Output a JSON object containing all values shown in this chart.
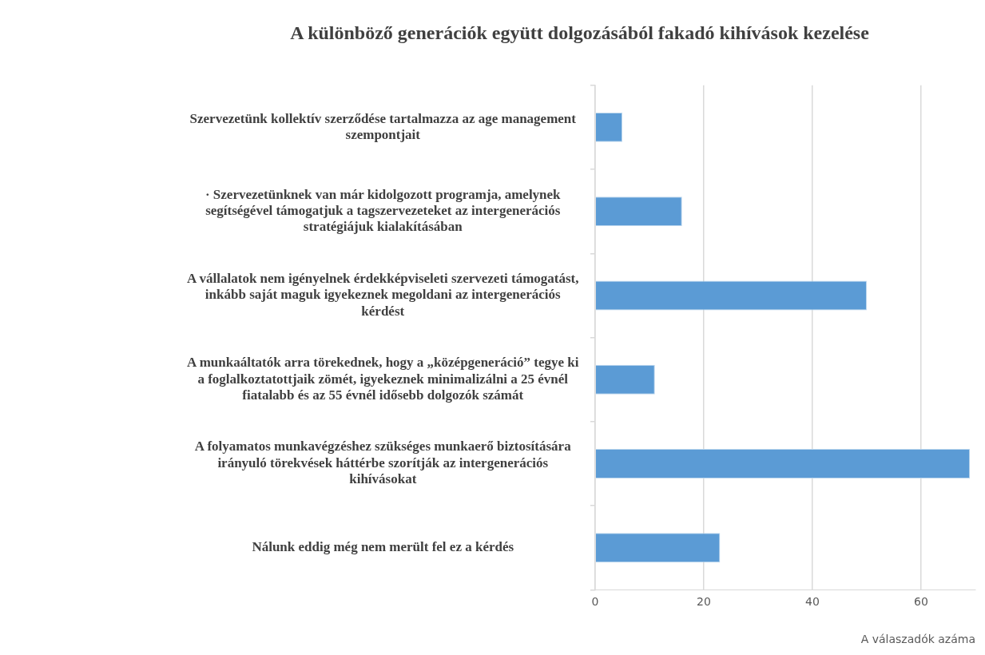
{
  "chart_data": {
    "type": "bar",
    "orientation": "horizontal",
    "title": "A különböző generációk együtt dolgozásából fakadó kihívások kezelése",
    "xlabel": "A válaszadók azáma",
    "categories": [
      "Szervezetünk kollektív szerződése tartalmazza az age management szempontjait",
      "· Szervezetünknek van már kidolgozott programja, amelynek segítségével támogatjuk a tagszervezeteket az intergenerációs stratégiájuk kialakításában",
      "A vállalatok nem igényelnek érdekképviseleti szervezeti támogatást, inkább saját maguk igyekeznek megoldani az intergenerációs kérdést",
      "A munkaáltatók arra törekednek, hogy a „középgeneráció” tegye ki a foglalkoztatottjaik zömét, igyekeznek minimalizálni a 25 évnél fiatalabb és az 55 évnél idősebb dolgozók számát",
      "A folyamatos munkavégzéshez szükséges munkaerő biztosítására irányuló törekvések háttérbe szorítják az intergenerációs kihívásokat",
      "Nálunk eddig még nem merült fel ez a kérdés"
    ],
    "values": [
      5,
      16,
      50,
      11,
      69,
      23
    ],
    "color": "#5b9bd5",
    "xlim": [
      0,
      70
    ],
    "xticks": [
      0,
      20,
      40,
      60
    ],
    "grid": "x"
  }
}
